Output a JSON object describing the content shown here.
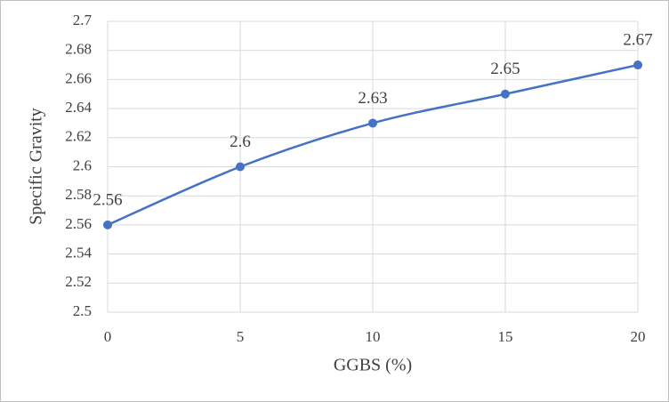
{
  "chart_data": {
    "type": "line",
    "x_label": "GGBS (%)",
    "y_label": "Specific Gravity",
    "x": [
      0,
      5,
      10,
      15,
      20
    ],
    "series": [
      {
        "color": "#4472c4",
        "values": [
          2.56,
          2.6,
          2.63,
          2.65,
          2.67
        ]
      }
    ],
    "xlim": [
      0,
      20
    ],
    "xticks": [
      0,
      5,
      10,
      15,
      20
    ],
    "ylim": [
      2.5,
      2.7
    ],
    "yticks": [
      2.5,
      2.52,
      2.54,
      2.56,
      2.58,
      2.6,
      2.62,
      2.64,
      2.66,
      2.68,
      2.7
    ],
    "grid": true,
    "smooth": true,
    "data_labels": true
  }
}
